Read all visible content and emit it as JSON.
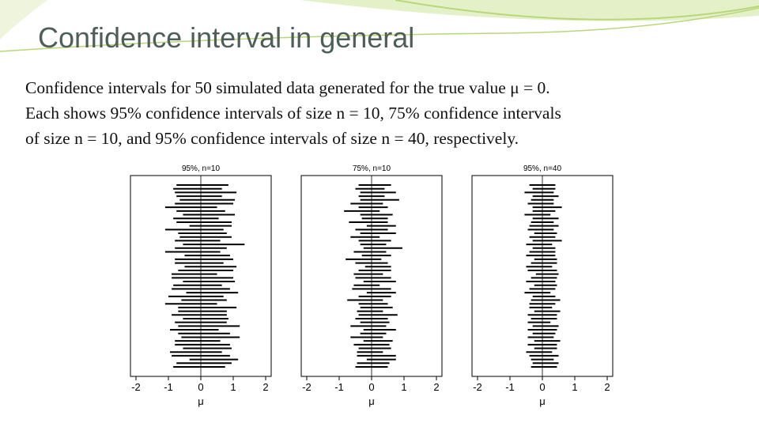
{
  "title": "Confidence interval in general",
  "body": [
    "Confidence intervals for 50 simulated data generated for the true value μ = 0.",
    "Each shows 95% confidence intervals of size n = 10, 75% confidence intervals",
    "of size n = 10, and 95% confidence intervals of size n = 40, respectively."
  ],
  "chart_data": [
    {
      "type": "interval",
      "title": "95%, n=10",
      "x_label": "μ",
      "xlim": [
        -2.17,
        2.17
      ],
      "xticks": [
        -2,
        -1,
        0,
        1,
        2
      ],
      "reference_line": 0,
      "color": "#000000",
      "values": [
        0.05,
        -0.1,
        0.15,
        -0.05,
        0.2,
        0.1,
        -0.3,
        0.0,
        0.25,
        -0.15,
        0.1,
        0.3,
        -0.2,
        0.05,
        0.15,
        -0.1,
        0.4,
        0.0,
        -0.25,
        0.2,
        0.1,
        -0.05,
        0.3,
        0.15,
        -0.2,
        0.05,
        0.25,
        -0.1,
        0.0,
        0.35,
        -0.15,
        0.1,
        -0.3,
        0.2,
        0.05,
        -0.05,
        0.15,
        0.0,
        0.25,
        -0.2,
        0.1,
        0.3,
        -0.1,
        0.05,
        0.2,
        -0.15,
        0.0,
        0.4,
        0.1,
        -0.05
      ],
      "errors": [
        0.8,
        0.75,
        0.95,
        0.7,
        0.85,
        0.9,
        0.8,
        0.75,
        0.8,
        0.7,
        0.85,
        0.65,
        0.9,
        0.75,
        0.8,
        0.7,
        0.95,
        0.8,
        0.85,
        0.7,
        0.9,
        0.75,
        0.8,
        0.85,
        0.7,
        0.95,
        0.8,
        0.75,
        0.9,
        0.8,
        0.85,
        0.7,
        0.8,
        0.9,
        0.75,
        0.85,
        0.7,
        0.8,
        0.95,
        0.75,
        0.8,
        0.9,
        0.7,
        0.85,
        0.75,
        0.8,
        0.9,
        0.75,
        0.85,
        0.8
      ]
    },
    {
      "type": "interval",
      "title": "75%, n=10",
      "x_label": "μ",
      "xlim": [
        -2.17,
        2.17
      ],
      "xticks": [
        -2,
        -1,
        0,
        1,
        2
      ],
      "reference_line": 0,
      "color": "#000000",
      "values": [
        0.1,
        -0.05,
        0.2,
        0.0,
        0.25,
        -0.15,
        0.05,
        -0.3,
        0.15,
        0.1,
        -0.1,
        0.3,
        0.0,
        0.2,
        -0.2,
        0.1,
        0.05,
        0.35,
        -0.05,
        0.15,
        -0.25,
        0.0,
        0.2,
        0.1,
        -0.1,
        0.05,
        0.25,
        -0.15,
        0.0,
        0.3,
        0.1,
        -0.2,
        0.05,
        0.15,
        -0.05,
        0.2,
        0.0,
        0.1,
        -0.1,
        0.25,
        0.05,
        -0.15,
        0.2,
        0.0,
        0.1,
        -0.05,
        0.15,
        0.3,
        0.05,
        0.0
      ],
      "errors": [
        0.5,
        0.45,
        0.55,
        0.4,
        0.6,
        0.5,
        0.45,
        0.55,
        0.5,
        0.4,
        0.6,
        0.45,
        0.5,
        0.55,
        0.45,
        0.5,
        0.4,
        0.6,
        0.5,
        0.45,
        0.55,
        0.5,
        0.4,
        0.5,
        0.45,
        0.55,
        0.5,
        0.4,
        0.6,
        0.45,
        0.5,
        0.55,
        0.45,
        0.5,
        0.4,
        0.6,
        0.5,
        0.45,
        0.55,
        0.5,
        0.4,
        0.5,
        0.45,
        0.55,
        0.5,
        0.4,
        0.6,
        0.45,
        0.5,
        0.5
      ]
    },
    {
      "type": "interval",
      "title": "95%, n=40",
      "x_label": "μ",
      "xlim": [
        -2.17,
        2.17
      ],
      "xticks": [
        -2,
        -1,
        0,
        1,
        2
      ],
      "reference_line": 0,
      "color": "#000000",
      "values": [
        0.0,
        0.05,
        -0.1,
        0.1,
        0.0,
        -0.05,
        0.15,
        0.05,
        -0.15,
        0.1,
        0.0,
        0.05,
        -0.05,
        0.1,
        0.0,
        0.15,
        -0.1,
        0.05,
        0.0,
        -0.05,
        0.1,
        0.05,
        -0.1,
        0.0,
        0.15,
        0.05,
        -0.05,
        0.1,
        0.0,
        -0.15,
        0.05,
        0.1,
        0.0,
        -0.05,
        0.15,
        0.0,
        0.05,
        -0.1,
        0.1,
        0.0,
        0.05,
        -0.05,
        0.15,
        0.0,
        0.1,
        -0.1,
        0.05,
        0.0,
        0.1,
        0.05
      ],
      "errors": [
        0.4,
        0.35,
        0.45,
        0.4,
        0.35,
        0.4,
        0.45,
        0.35,
        0.4,
        0.4,
        0.35,
        0.45,
        0.4,
        0.35,
        0.4,
        0.45,
        0.4,
        0.35,
        0.4,
        0.45,
        0.35,
        0.4,
        0.4,
        0.45,
        0.35,
        0.4,
        0.45,
        0.35,
        0.4,
        0.4,
        0.35,
        0.45,
        0.4,
        0.35,
        0.4,
        0.45,
        0.4,
        0.35,
        0.4,
        0.45,
        0.35,
        0.4,
        0.4,
        0.45,
        0.35,
        0.4,
        0.45,
        0.35,
        0.4,
        0.4
      ]
    }
  ]
}
